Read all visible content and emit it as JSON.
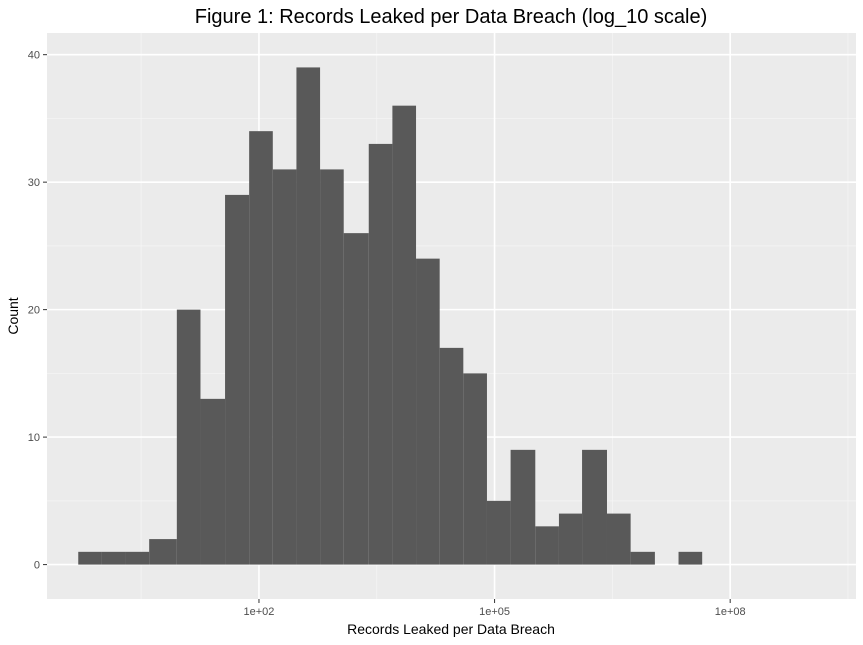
{
  "chart_data": {
    "type": "bar",
    "title": "Figure 1: Records Leaked per Data Breach (log_10 scale)",
    "xlabel": "Records Leaked per Data Breach",
    "ylabel": "Count",
    "x_scale": "log10",
    "xlim": [
      0.2,
      4000000000
    ],
    "ylim": [
      -2.7,
      41.7
    ],
    "x_ticks": [
      {
        "value": 100,
        "label": "1e+02"
      },
      {
        "value": 100000,
        "label": "1e+05"
      },
      {
        "value": 100000000,
        "label": "1e+08"
      }
    ],
    "x_minor_ticks": [
      3.16,
      3162,
      3162278,
      3162277660
    ],
    "y_ticks": [
      0,
      10,
      20,
      30,
      40
    ],
    "grid": true,
    "bar_color": "#595959",
    "panel_background": "#ebebeb",
    "bins": [
      {
        "x_from": 0.5,
        "x_to": 1,
        "count": 1
      },
      {
        "x_from": 1,
        "x_to": 2,
        "count": 1
      },
      {
        "x_from": 2,
        "x_to": 4,
        "count": 1
      },
      {
        "x_from": 4,
        "x_to": 9,
        "count": 2
      },
      {
        "x_from": 9,
        "x_to": 18,
        "count": 20
      },
      {
        "x_from": 18,
        "x_to": 37,
        "count": 13
      },
      {
        "x_from": 37,
        "x_to": 75,
        "count": 29
      },
      {
        "x_from": 75,
        "x_to": 150,
        "count": 34
      },
      {
        "x_from": 150,
        "x_to": 300,
        "count": 31
      },
      {
        "x_from": 300,
        "x_to": 600,
        "count": 39
      },
      {
        "x_from": 600,
        "x_to": 1200,
        "count": 31
      },
      {
        "x_from": 1200,
        "x_to": 2500,
        "count": 26
      },
      {
        "x_from": 2500,
        "x_to": 5000,
        "count": 33
      },
      {
        "x_from": 5000,
        "x_to": 10000,
        "count": 36
      },
      {
        "x_from": 10000,
        "x_to": 20000,
        "count": 24
      },
      {
        "x_from": 20000,
        "x_to": 40000,
        "count": 17
      },
      {
        "x_from": 40000,
        "x_to": 80000,
        "count": 15
      },
      {
        "x_from": 80000,
        "x_to": 160000,
        "count": 5
      },
      {
        "x_from": 160000,
        "x_to": 330000,
        "count": 9
      },
      {
        "x_from": 330000,
        "x_to": 660000,
        "count": 3
      },
      {
        "x_from": 660000,
        "x_to": 1300000,
        "count": 4
      },
      {
        "x_from": 1300000,
        "x_to": 2700000,
        "count": 9
      },
      {
        "x_from": 2700000,
        "x_to": 5400000,
        "count": 4
      },
      {
        "x_from": 5400000,
        "x_to": 11000000,
        "count": 1
      },
      {
        "x_from": 11000000,
        "x_to": 22000000,
        "count": 0
      },
      {
        "x_from": 22000000,
        "x_to": 44000000,
        "count": 1
      }
    ]
  }
}
